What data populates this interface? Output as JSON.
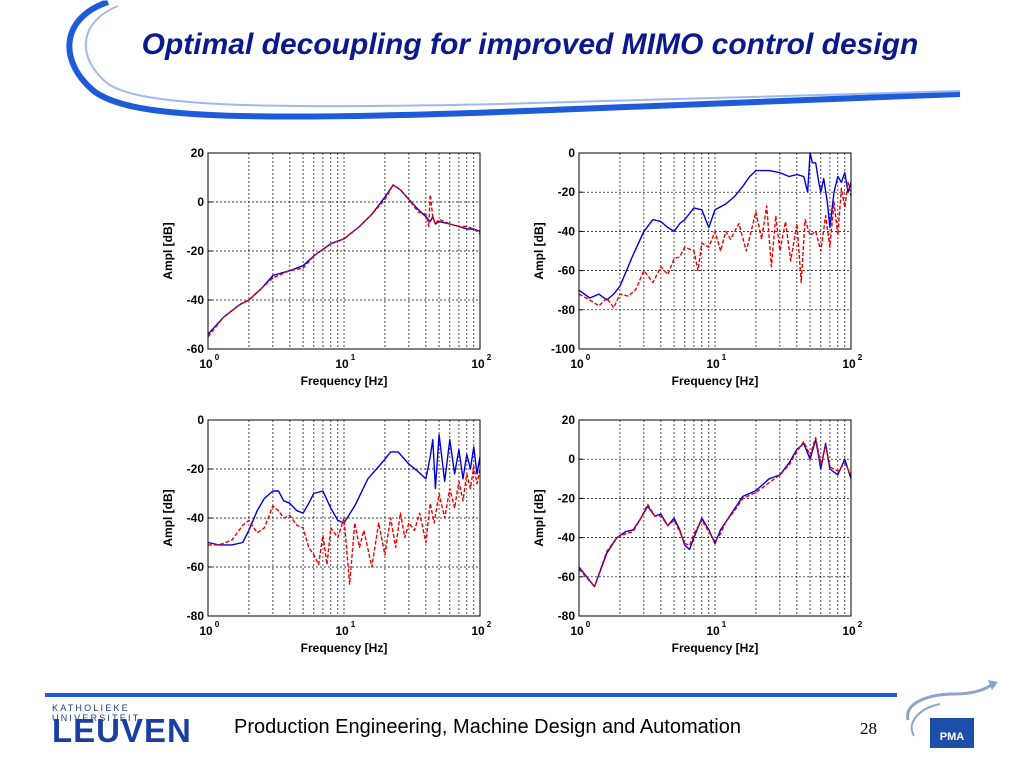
{
  "title": "Optimal decoupling for improved MIMO control design",
  "footer": {
    "logo_top": "KATHOLIEKE UNIVERSITEIT",
    "logo_main": "LEUVEN",
    "text": "Production Engineering, Machine Design and Automation",
    "page": "28",
    "badge": "PMA"
  },
  "colors": {
    "title": "#0a1a8c",
    "accent": "#1e5bd8",
    "series_blue": "#0000dd",
    "series_red": "#ee0000"
  },
  "chart_data": [
    {
      "type": "line",
      "position": "top-left",
      "xlabel": "Frequency [Hz]",
      "ylabel": "Ampl [dB]",
      "xscale": "log",
      "xlim": [
        1,
        100
      ],
      "ylim": [
        -60,
        20
      ],
      "yticks": [
        -60,
        -40,
        -20,
        0,
        20
      ],
      "grid": true,
      "series": [
        {
          "color": "blue",
          "style": "solid",
          "x": [
            1,
            1.3,
            1.7,
            2,
            2.5,
            3,
            4,
            5,
            6,
            8,
            10,
            13,
            16,
            20,
            23,
            26,
            30,
            35,
            40,
            43,
            45,
            47,
            50,
            60,
            70,
            80,
            90,
            100
          ],
          "y": [
            -54,
            -47,
            -42,
            -40,
            -35,
            -30,
            -28,
            -26,
            -22,
            -17,
            -15,
            -10,
            -5,
            2,
            7,
            5,
            1,
            -3,
            -6,
            -8,
            -6,
            -9,
            -8,
            -9,
            -10,
            -11,
            -11,
            -12
          ]
        },
        {
          "color": "red",
          "style": "dashed",
          "x": [
            1,
            1.3,
            1.7,
            2,
            2.5,
            3,
            4,
            5,
            6,
            8,
            10,
            13,
            16,
            20,
            23,
            26,
            30,
            35,
            40,
            42,
            43,
            45,
            47,
            50,
            60,
            70,
            80,
            90,
            100
          ],
          "y": [
            -55,
            -47,
            -42,
            -40,
            -35,
            -31,
            -28,
            -27,
            -22,
            -17,
            -15,
            -10,
            -5,
            1,
            7,
            5,
            1,
            -4,
            -5,
            -10,
            3,
            -6,
            -9,
            -7,
            -9,
            -10,
            -10,
            -11,
            -13
          ]
        }
      ]
    },
    {
      "type": "line",
      "position": "top-right",
      "xlabel": "Frequency [Hz]",
      "ylabel": "Ampl [dB]",
      "xscale": "log",
      "xlim": [
        1,
        100
      ],
      "ylim": [
        -100,
        0
      ],
      "yticks": [
        -100,
        -80,
        -60,
        -40,
        -20,
        0
      ],
      "grid": true,
      "series": [
        {
          "color": "blue",
          "style": "solid",
          "x": [
            1,
            1.2,
            1.4,
            1.6,
            1.8,
            2,
            2.5,
            3,
            3.5,
            4,
            4.5,
            5,
            5.5,
            6,
            7,
            8,
            9,
            10,
            12,
            14,
            16,
            18,
            20,
            25,
            30,
            35,
            40,
            45,
            48,
            50,
            52,
            55,
            58,
            60,
            63,
            67,
            70,
            75,
            80,
            85,
            90,
            95,
            100
          ],
          "y": [
            -70,
            -74,
            -72,
            -75,
            -72,
            -68,
            -52,
            -40,
            -34,
            -35,
            -38,
            -40,
            -36,
            -34,
            -28,
            -29,
            -38,
            -29,
            -26,
            -22,
            -17,
            -12,
            -9,
            -9,
            -10,
            -12,
            -11,
            -12,
            -20,
            0,
            -5,
            -5,
            -15,
            -20,
            -13,
            -25,
            -38,
            -20,
            -12,
            -15,
            -10,
            -20,
            -15
          ]
        },
        {
          "color": "red",
          "style": "dashed",
          "x": [
            1,
            1.2,
            1.4,
            1.6,
            1.8,
            2,
            2.3,
            2.6,
            3,
            3.5,
            4,
            4.5,
            5,
            5.5,
            6,
            7,
            7.5,
            8,
            9,
            10,
            11,
            12,
            13,
            15,
            17,
            20,
            22,
            24,
            26,
            28,
            30,
            33,
            36,
            40,
            43,
            46,
            50,
            55,
            60,
            65,
            70,
            75,
            80,
            85,
            90,
            95,
            100
          ],
          "y": [
            -72,
            -75,
            -78,
            -74,
            -79,
            -72,
            -73,
            -70,
            -60,
            -66,
            -58,
            -62,
            -54,
            -53,
            -48,
            -50,
            -60,
            -46,
            -48,
            -40,
            -50,
            -40,
            -44,
            -36,
            -50,
            -30,
            -44,
            -27,
            -58,
            -32,
            -50,
            -35,
            -55,
            -36,
            -66,
            -34,
            -42,
            -40,
            -50,
            -32,
            -48,
            -25,
            -42,
            -18,
            -28,
            -15,
            -22
          ]
        }
      ]
    },
    {
      "type": "line",
      "position": "bottom-left",
      "xlabel": "Frequency [Hz]",
      "ylabel": "Ampl [dB]",
      "xscale": "log",
      "xlim": [
        1,
        100
      ],
      "ylim": [
        -80,
        0
      ],
      "yticks": [
        -80,
        -60,
        -40,
        -20,
        0
      ],
      "grid": true,
      "series": [
        {
          "color": "blue",
          "style": "solid",
          "x": [
            1,
            1.2,
            1.5,
            1.8,
            2,
            2.3,
            2.6,
            3,
            3.3,
            3.6,
            4,
            4.5,
            5,
            5.5,
            6,
            7,
            8,
            9,
            10,
            12,
            15,
            18,
            20,
            22,
            25,
            30,
            35,
            40,
            43,
            45,
            47,
            50,
            55,
            60,
            65,
            70,
            75,
            80,
            85,
            90,
            95,
            100
          ],
          "y": [
            -50,
            -51,
            -51,
            -50,
            -45,
            -37,
            -32,
            -29,
            -29,
            -33,
            -34,
            -37,
            -38,
            -34,
            -30,
            -29,
            -36,
            -41,
            -42,
            -35,
            -24,
            -19,
            -16,
            -13,
            -13,
            -18,
            -21,
            -24,
            -15,
            -8,
            -28,
            -6,
            -25,
            -8,
            -22,
            -12,
            -24,
            -14,
            -20,
            -11,
            -22,
            -15
          ]
        },
        {
          "color": "red",
          "style": "dashed",
          "x": [
            1,
            1.2,
            1.5,
            1.8,
            2,
            2.3,
            2.6,
            3,
            3.3,
            3.6,
            4,
            4.5,
            5,
            5.5,
            6,
            6.5,
            7,
            7.5,
            8,
            9,
            10,
            11,
            12,
            13,
            14,
            16,
            18,
            20,
            22,
            24,
            26,
            28,
            30,
            33,
            36,
            40,
            43,
            46,
            50,
            55,
            60,
            65,
            70,
            75,
            80,
            85,
            90,
            95,
            100
          ],
          "y": [
            -51,
            -51,
            -49,
            -43,
            -41,
            -46,
            -44,
            -35,
            -37,
            -40,
            -39,
            -43,
            -44,
            -52,
            -55,
            -59,
            -47,
            -59,
            -44,
            -48,
            -40,
            -67,
            -42,
            -52,
            -45,
            -60,
            -42,
            -55,
            -40,
            -52,
            -38,
            -48,
            -42,
            -45,
            -38,
            -50,
            -34,
            -42,
            -30,
            -40,
            -28,
            -36,
            -25,
            -33,
            -22,
            -28,
            -19,
            -26,
            -20
          ]
        }
      ]
    },
    {
      "type": "line",
      "position": "bottom-right",
      "xlabel": "Frequency [Hz]",
      "ylabel": "Ampl [dB]",
      "xscale": "log",
      "xlim": [
        1,
        100
      ],
      "ylim": [
        -80,
        20
      ],
      "yticks": [
        -80,
        -60,
        -40,
        -20,
        0,
        20
      ],
      "grid": true,
      "series": [
        {
          "color": "blue",
          "style": "solid",
          "x": [
            1,
            1.3,
            1.6,
            1.9,
            2.2,
            2.5,
            2.8,
            3.2,
            3.6,
            4,
            4.5,
            5,
            5.5,
            6,
            6.5,
            7,
            8,
            9,
            10,
            11,
            12,
            14,
            16,
            20,
            25,
            30,
            35,
            40,
            45,
            50,
            55,
            60,
            65,
            70,
            80,
            90,
            100
          ],
          "y": [
            -55,
            -65,
            -48,
            -40,
            -37,
            -36,
            -31,
            -24,
            -29,
            -28,
            -34,
            -30,
            -36,
            -44,
            -46,
            -40,
            -30,
            -36,
            -43,
            -36,
            -32,
            -25,
            -19,
            -16,
            -10,
            -8,
            -2,
            5,
            8,
            0,
            10,
            -5,
            8,
            -5,
            -8,
            0,
            -10
          ]
        },
        {
          "color": "red",
          "style": "dashed",
          "x": [
            1,
            1.3,
            1.6,
            1.9,
            2.2,
            2.5,
            2.8,
            3.2,
            3.6,
            4,
            4.5,
            5,
            5.5,
            6,
            6.5,
            7,
            8,
            9,
            10,
            11,
            12,
            14,
            16,
            20,
            25,
            30,
            35,
            40,
            45,
            50,
            55,
            60,
            65,
            70,
            80,
            90,
            100
          ],
          "y": [
            -56,
            -65,
            -47,
            -40,
            -38,
            -37,
            -31,
            -23,
            -29,
            -29,
            -34,
            -31,
            -37,
            -43,
            -44,
            -38,
            -31,
            -37,
            -42,
            -38,
            -32,
            -26,
            -20,
            -17,
            -12,
            -8,
            -3,
            4,
            9,
            2,
            11,
            -3,
            7,
            -4,
            -6,
            -2,
            -8
          ]
        }
      ]
    }
  ]
}
